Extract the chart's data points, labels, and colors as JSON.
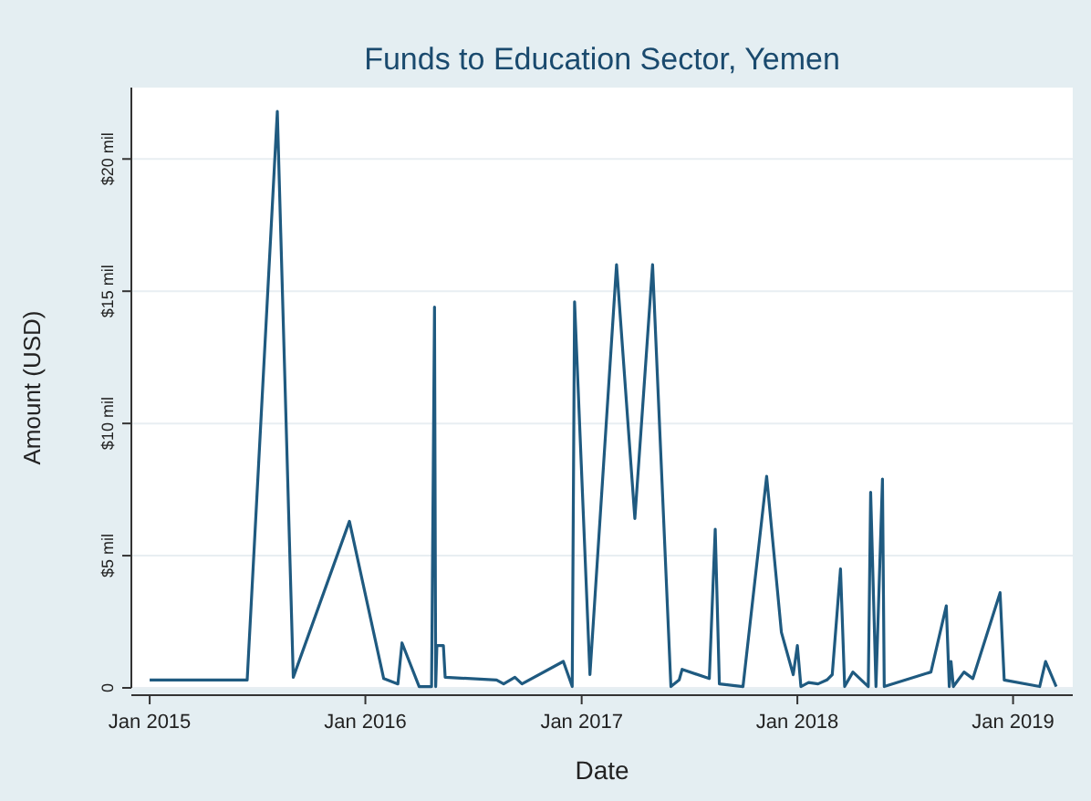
{
  "chart_data": {
    "type": "line",
    "title": "Funds to Education Sector, Yemen",
    "xlabel": "Date",
    "ylabel": "Amount (USD)",
    "x": [
      "2015-01-01",
      "2015-06-15",
      "2015-08-05",
      "2015-09-01",
      "2015-12-05",
      "2016-02-01",
      "2016-02-25",
      "2016-03-03",
      "2016-04-01",
      "2016-04-22",
      "2016-04-27",
      "2016-04-29",
      "2016-05-01",
      "2016-05-12",
      "2016-05-15",
      "2016-08-10",
      "2016-08-22",
      "2016-09-10",
      "2016-09-22",
      "2016-12-01",
      "2016-12-16",
      "2016-12-20",
      "2017-01-15",
      "2017-03-01",
      "2017-04-01",
      "2017-05-01",
      "2017-06-01",
      "2017-06-15",
      "2017-06-20",
      "2017-08-05",
      "2017-08-15",
      "2017-08-22",
      "2017-10-01",
      "2017-11-10",
      "2017-12-05",
      "2017-12-25",
      "2018-01-01",
      "2018-01-07",
      "2018-01-20",
      "2018-02-05",
      "2018-02-20",
      "2018-03-01",
      "2018-03-15",
      "2018-03-22",
      "2018-04-05",
      "2018-05-01",
      "2018-05-05",
      "2018-05-14",
      "2018-05-25",
      "2018-05-28",
      "2018-08-15",
      "2018-09-10",
      "2018-09-15",
      "2018-09-18",
      "2018-09-22",
      "2018-10-10",
      "2018-10-25",
      "2018-12-10",
      "2018-12-17",
      "2019-02-15",
      "2019-02-25",
      "2019-03-15"
    ],
    "series": [
      {
        "color": "#1f5a80",
        "values": [
          0.3,
          0.3,
          21.8,
          0.4,
          6.3,
          0.35,
          0.15,
          1.7,
          0.05,
          0.05,
          14.4,
          0.05,
          1.6,
          1.6,
          0.4,
          0.3,
          0.15,
          0.4,
          0.15,
          1.0,
          0.05,
          14.6,
          0.5,
          16.0,
          6.4,
          16.0,
          0.05,
          0.3,
          0.7,
          0.35,
          6.0,
          0.15,
          0.05,
          8.0,
          2.1,
          0.5,
          1.6,
          0.05,
          0.2,
          0.15,
          0.3,
          0.5,
          4.5,
          0.05,
          0.6,
          0.05,
          7.4,
          0.05,
          7.9,
          0.05,
          0.6,
          3.1,
          0.05,
          1.0,
          0.05,
          0.6,
          0.35,
          3.6,
          0.3,
          0.05,
          1.0,
          0.05
        ]
      }
    ],
    "xlim": [
      "2014-12-01",
      "2019-04-12"
    ],
    "ylim": [
      0,
      22.7
    ],
    "xticks": [
      {
        "value": "2015-01-01",
        "label": "Jan 2015"
      },
      {
        "value": "2016-01-01",
        "label": "Jan 2016"
      },
      {
        "value": "2017-01-01",
        "label": "Jan 2017"
      },
      {
        "value": "2018-01-01",
        "label": "Jan 2018"
      },
      {
        "value": "2019-01-01",
        "label": "Jan 2019"
      }
    ],
    "yticks": [
      0,
      {
        "value": 5,
        "label": "$5 mil"
      },
      {
        "value": 10,
        "label": "$10 mil"
      },
      {
        "value": 15,
        "label": "$15 mil"
      },
      {
        "value": 20,
        "label": "$20 mil"
      }
    ],
    "grid": "y"
  }
}
